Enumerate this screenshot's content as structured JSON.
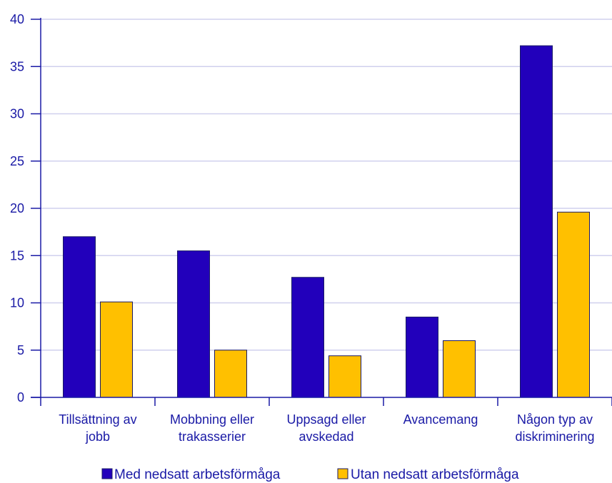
{
  "chart_data": {
    "type": "bar",
    "categories": [
      [
        "Tillsättning av",
        "jobb"
      ],
      [
        "Mobbning eller",
        "trakasserier"
      ],
      [
        "Uppsagd eller",
        "avskedad"
      ],
      [
        "Avancemang"
      ],
      [
        "Någon typ av",
        "diskriminering"
      ]
    ],
    "series": [
      {
        "name": "Med nedsatt arbetsförmåga",
        "color": "#2200bb",
        "values": [
          17.0,
          15.5,
          12.7,
          8.5,
          37.2
        ]
      },
      {
        "name": "Utan nedsatt arbetsförmåga",
        "color": "#ffc000",
        "values": [
          10.1,
          5.0,
          4.4,
          6.0,
          19.6
        ]
      }
    ],
    "ylim": [
      0,
      40
    ],
    "yticks": [
      0,
      5,
      10,
      15,
      20,
      25,
      30,
      35,
      40
    ],
    "grid": true,
    "legend_position": "bottom",
    "colors": {
      "axis": "#1a1aa6",
      "grid": "#d0d0ee",
      "text": "#1a1aa6",
      "bar_border": "#1a1a66"
    }
  }
}
